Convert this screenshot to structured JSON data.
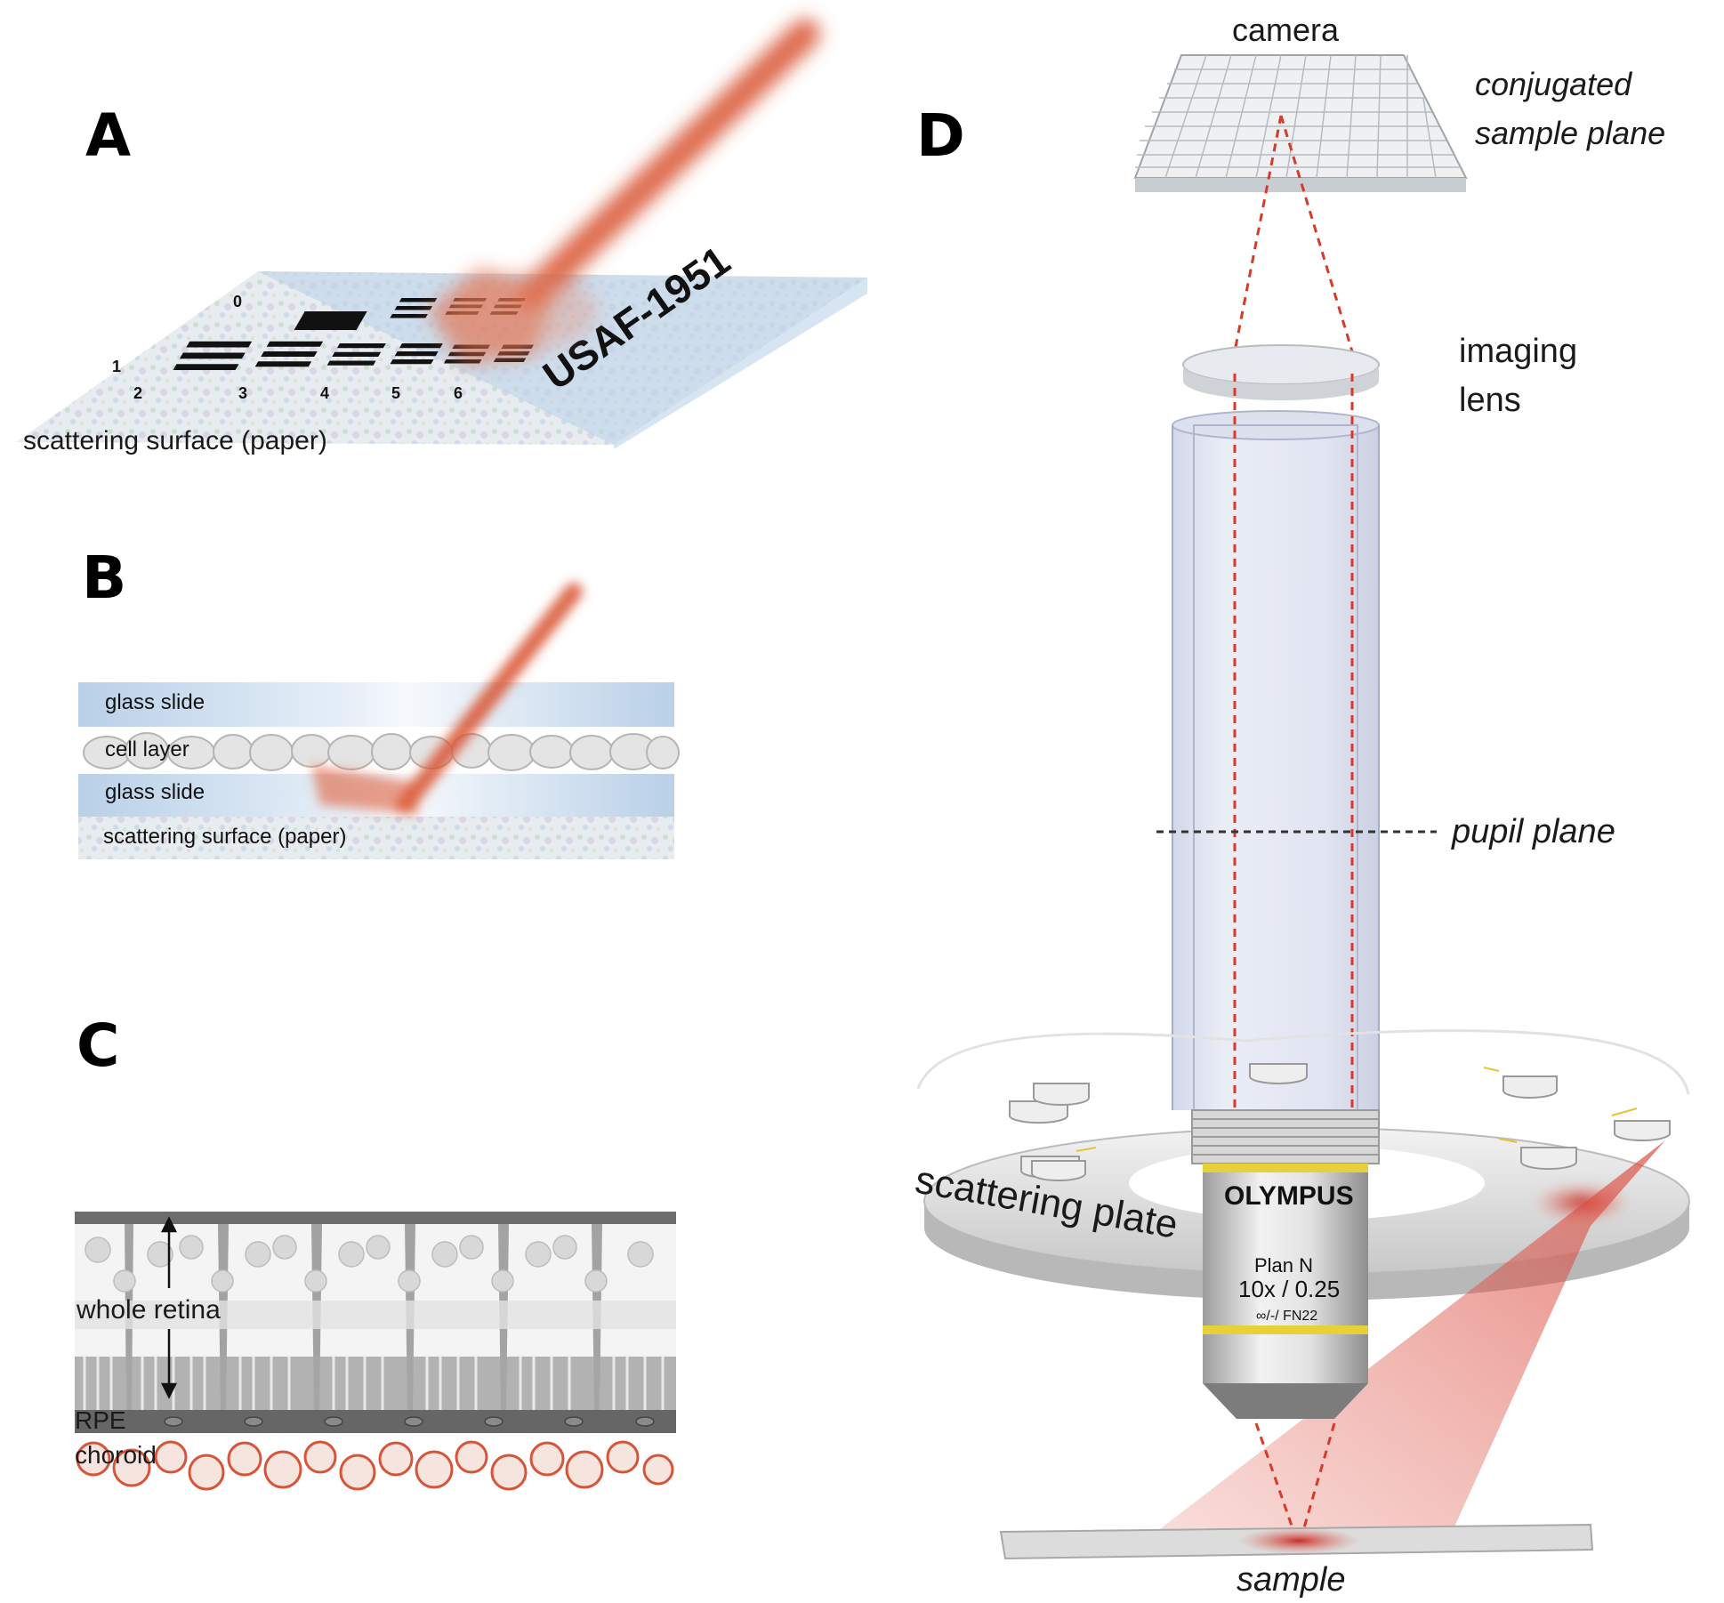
{
  "panels": {
    "a": {
      "label": "A",
      "surface_label": "scattering surface  (paper)",
      "target_text": "USAF-1951",
      "group_numbers": [
        "0",
        "1",
        "2",
        "3",
        "4",
        "5",
        "6"
      ]
    },
    "b": {
      "label": "B",
      "layers": [
        "glass slide",
        "cell layer",
        "glass slide",
        "scattering surface  (paper)"
      ]
    },
    "c": {
      "label": "C",
      "layers": [
        "whole retina",
        "RPE",
        "choroid"
      ]
    },
    "d": {
      "label": "D",
      "camera": "camera",
      "conjugated_line1": "conjugated",
      "conjugated_line2": "sample plane",
      "imaging_line1": "imaging",
      "imaging_line2": "lens",
      "pupil_plane": "pupil plane",
      "scattering_plate": "scattering plate",
      "sample": "sample",
      "objective_brand": "OLYMPUS",
      "objective_line1": "Plan N",
      "objective_line2": "10x / 0.25",
      "objective_line3": "∞/-/ FN22"
    }
  },
  "colors": {
    "beam": "#d9532f",
    "glass": "#bcd3ea",
    "tube": "#c9d0e6",
    "dashed_ray": "#d83a2a",
    "objective_ring": "#e6d13a"
  }
}
